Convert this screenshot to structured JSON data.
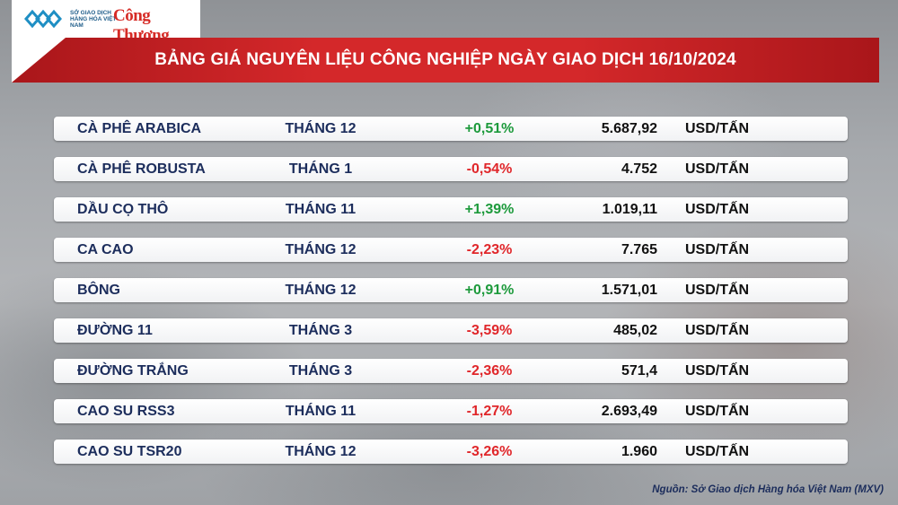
{
  "logos": {
    "exchange_text": "SỞ GIAO DỊCH HÀNG HÓA VIỆT NAM",
    "publisher": "Công Thương"
  },
  "title": "BẢNG GIÁ NGUYÊN LIỆU CÔNG NGHIỆP NGÀY GIAO DỊCH 16/10/2024",
  "colors": {
    "up": "#1d9a3c",
    "down": "#e0262a",
    "accent": "#d4282a",
    "text": "#1c2d5c"
  },
  "rows": [
    {
      "name": "CÀ PHÊ ARABICA",
      "month": "THÁNG 12",
      "change": "+0,51%",
      "direction": "up",
      "price": "5.687,92",
      "unit": "USD/TẤN"
    },
    {
      "name": "CÀ PHÊ ROBUSTA",
      "month": "THÁNG 1",
      "change": "-0,54%",
      "direction": "down",
      "price": "4.752",
      "unit": "USD/TẤN"
    },
    {
      "name": "DẦU CỌ THÔ",
      "month": "THÁNG 11",
      "change": "+1,39%",
      "direction": "up",
      "price": "1.019,11",
      "unit": "USD/TẤN"
    },
    {
      "name": "CA CAO",
      "month": "THÁNG 12",
      "change": "-2,23%",
      "direction": "down",
      "price": "7.765",
      "unit": "USD/TẤN"
    },
    {
      "name": "BÔNG",
      "month": "THÁNG 12",
      "change": "+0,91%",
      "direction": "up",
      "price": "1.571,01",
      "unit": "USD/TẤN"
    },
    {
      "name": "ĐƯỜNG 11",
      "month": "THÁNG 3",
      "change": "-3,59%",
      "direction": "down",
      "price": "485,02",
      "unit": "USD/TẤN"
    },
    {
      "name": "ĐƯỜNG TRẮNG",
      "month": "THÁNG 3",
      "change": "-2,36%",
      "direction": "down",
      "price": "571,4",
      "unit": "USD/TẤN"
    },
    {
      "name": "CAO SU RSS3",
      "month": "THÁNG 11",
      "change": "-1,27%",
      "direction": "down",
      "price": "2.693,49",
      "unit": "USD/TẤN"
    },
    {
      "name": "CAO SU TSR20",
      "month": "THÁNG 12",
      "change": "-3,26%",
      "direction": "down",
      "price": "1.960",
      "unit": "USD/TẤN"
    }
  ],
  "source": "Nguồn: Sở Giao dịch Hàng hóa Việt Nam (MXV)"
}
